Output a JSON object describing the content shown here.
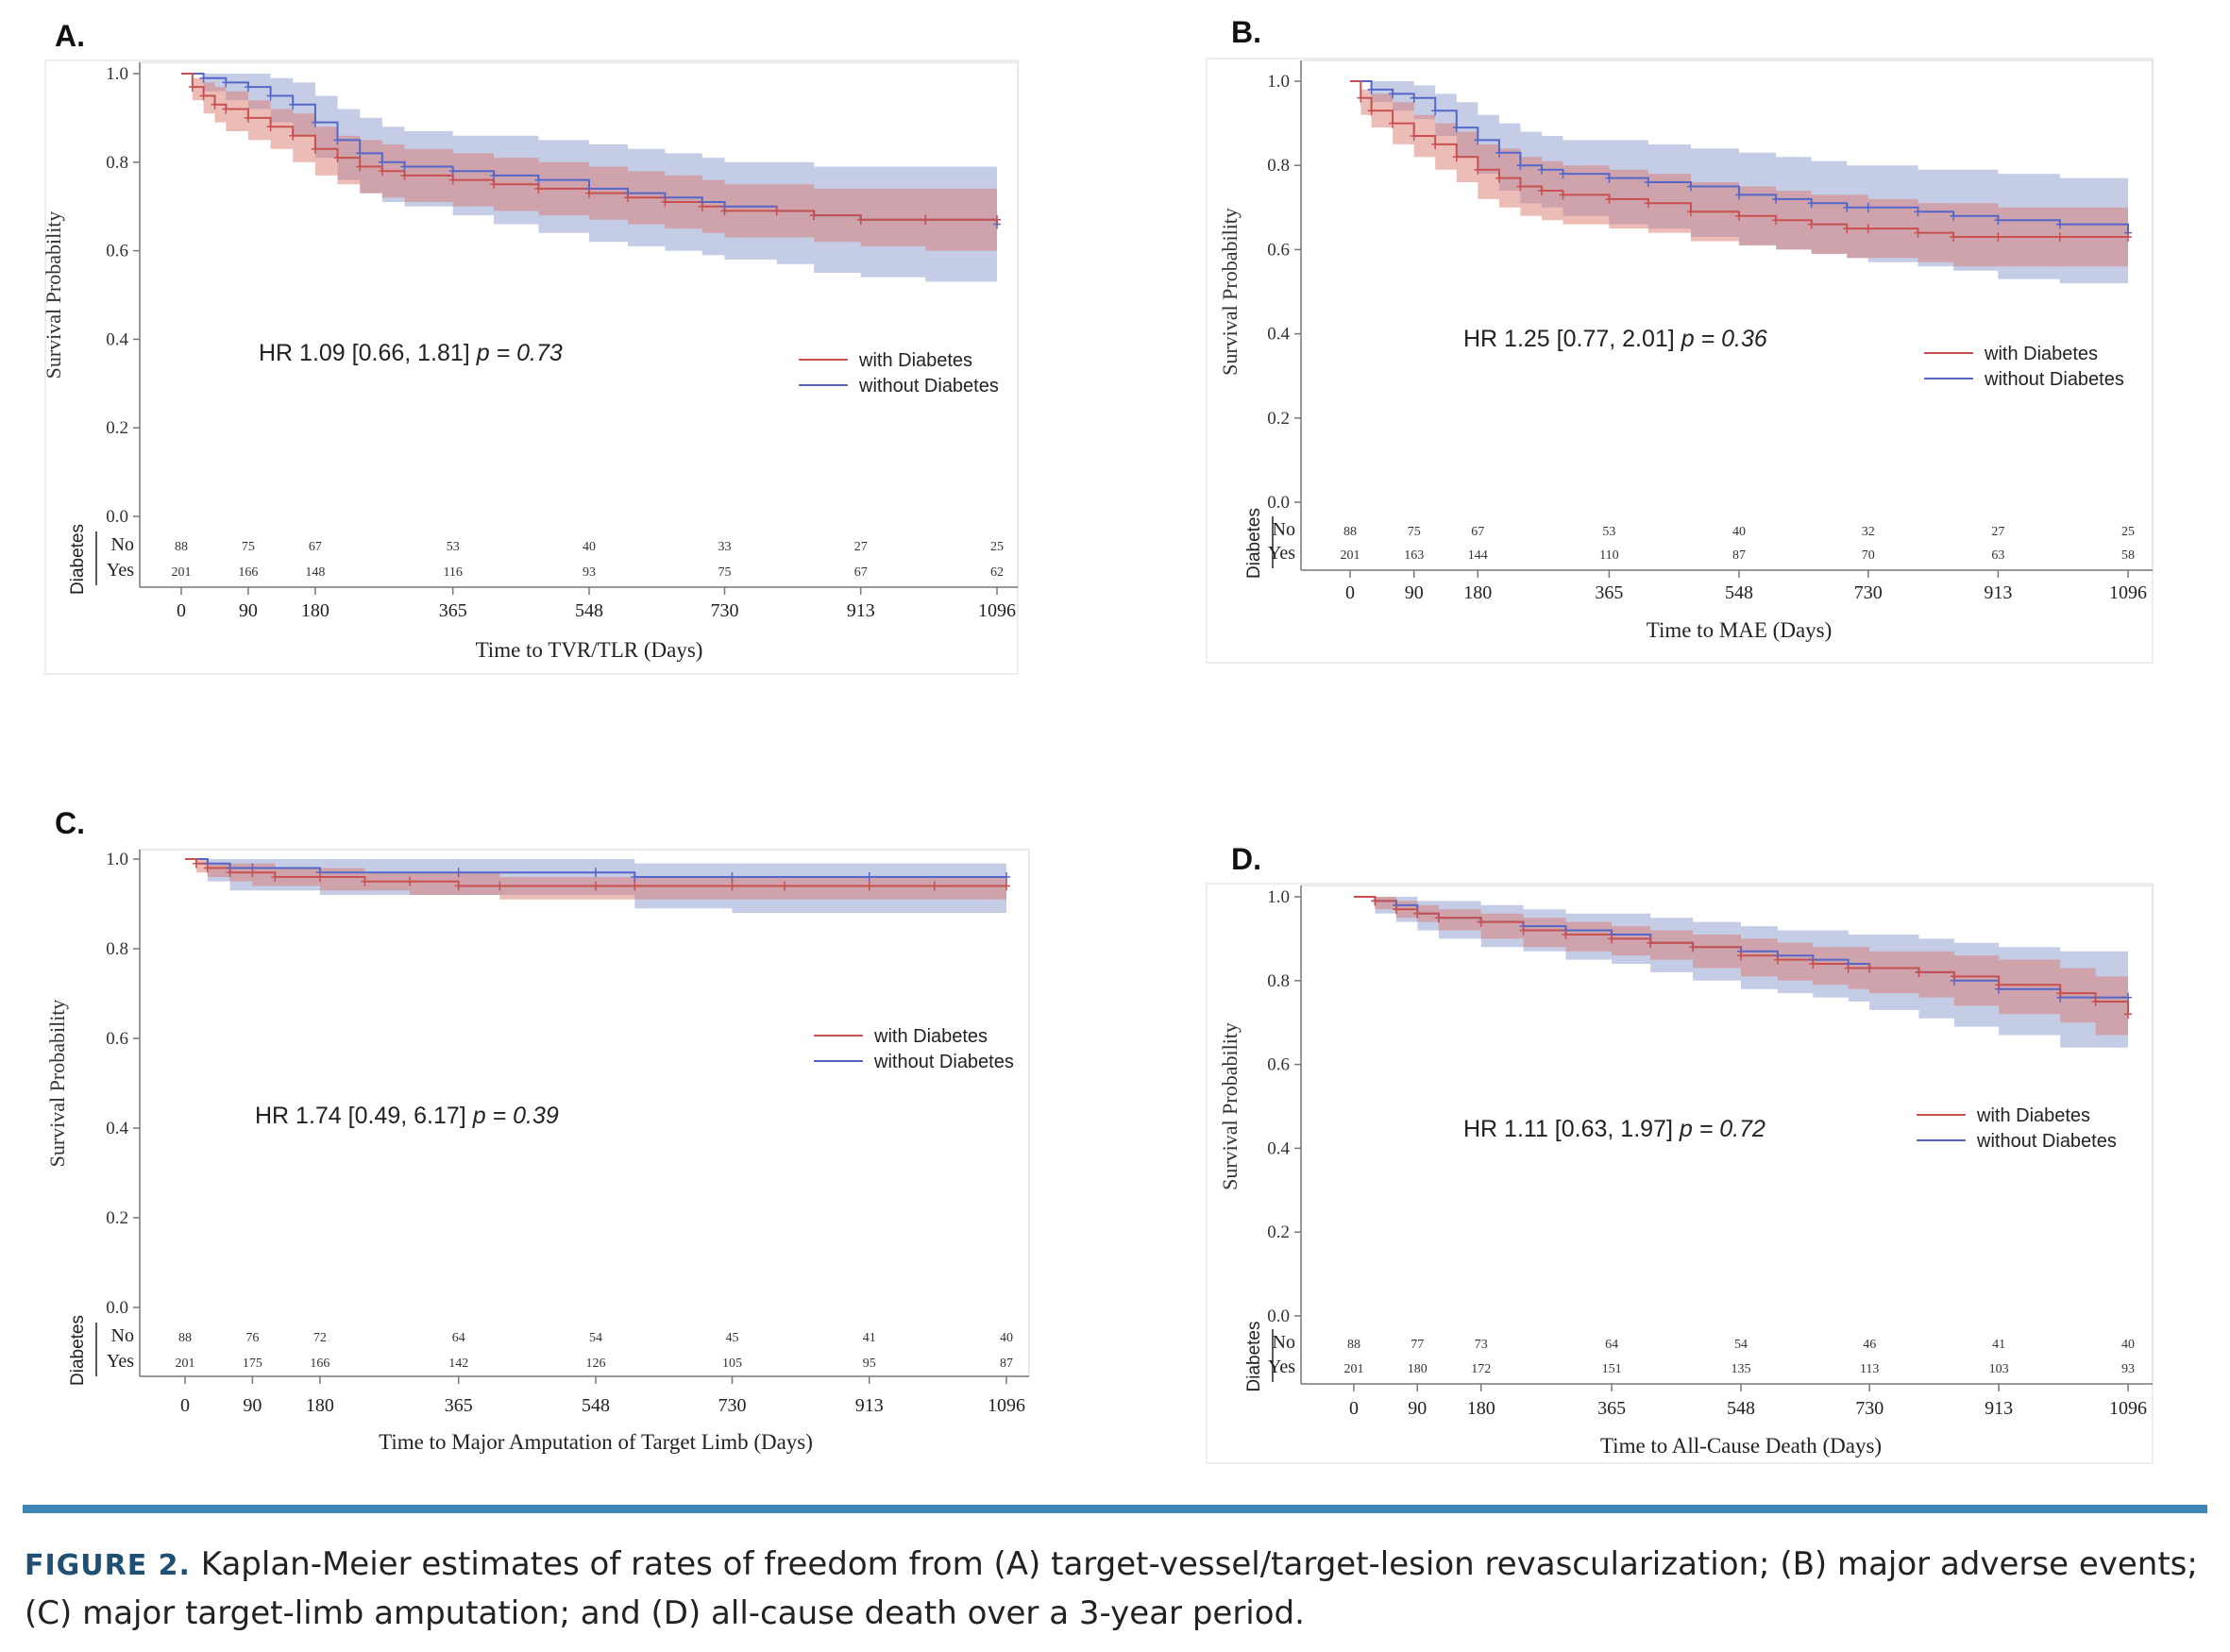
{
  "colors": {
    "diabetes": "#c8504f",
    "no_diabetes": "#5467c8",
    "band_diabetes": "#d9796f",
    "band_no_diabetes": "#aeb8dc"
  },
  "common": {
    "ylabel": "Survival Probability",
    "risk_label": "Diabetes",
    "risk_rows": [
      "No",
      "Yes"
    ],
    "y_ticks": [
      "0.0",
      "0.2",
      "0.4",
      "0.6",
      "0.8",
      "1.0"
    ],
    "x_ticks": [
      "0",
      "90",
      "180",
      "365",
      "548",
      "730",
      "913",
      "1096"
    ],
    "legend": [
      "with Diabetes",
      "without Diabetes"
    ]
  },
  "chart_data": [
    {
      "type": "line",
      "panel": "A.",
      "xlabel": "Time to TVR/TLR (Days)",
      "ylabel": "Survival Probability",
      "ylim": [
        0,
        1
      ],
      "xlim": [
        0,
        1096
      ],
      "annotation_prefix": "HR 1.09 [0.66, 1.81] ",
      "annotation_p": "p = 0.73",
      "legend_position": "right",
      "series": [
        {
          "name": "with Diabetes",
          "x": [
            0,
            15,
            30,
            45,
            60,
            90,
            120,
            150,
            180,
            210,
            240,
            270,
            300,
            365,
            420,
            480,
            548,
            600,
            650,
            700,
            730,
            800,
            850,
            913,
            1000,
            1096
          ],
          "y": [
            1.0,
            0.97,
            0.95,
            0.93,
            0.92,
            0.9,
            0.88,
            0.86,
            0.83,
            0.81,
            0.79,
            0.78,
            0.77,
            0.76,
            0.75,
            0.74,
            0.73,
            0.72,
            0.71,
            0.7,
            0.69,
            0.69,
            0.68,
            0.67,
            0.67,
            0.67
          ],
          "lower": [
            1.0,
            0.94,
            0.91,
            0.89,
            0.87,
            0.85,
            0.83,
            0.8,
            0.77,
            0.75,
            0.73,
            0.72,
            0.71,
            0.7,
            0.69,
            0.68,
            0.67,
            0.66,
            0.65,
            0.64,
            0.63,
            0.63,
            0.62,
            0.61,
            0.6,
            0.6
          ],
          "upper": [
            1.0,
            0.99,
            0.98,
            0.97,
            0.96,
            0.94,
            0.92,
            0.91,
            0.88,
            0.86,
            0.85,
            0.84,
            0.83,
            0.82,
            0.81,
            0.8,
            0.79,
            0.78,
            0.77,
            0.76,
            0.75,
            0.75,
            0.74,
            0.74,
            0.74,
            0.74
          ]
        },
        {
          "name": "without Diabetes",
          "x": [
            0,
            30,
            60,
            90,
            120,
            150,
            180,
            210,
            240,
            270,
            300,
            365,
            420,
            480,
            548,
            600,
            650,
            700,
            730,
            800,
            850,
            913,
            1000,
            1096
          ],
          "y": [
            1.0,
            0.99,
            0.98,
            0.97,
            0.95,
            0.93,
            0.89,
            0.85,
            0.82,
            0.8,
            0.79,
            0.78,
            0.77,
            0.76,
            0.74,
            0.73,
            0.72,
            0.71,
            0.7,
            0.69,
            0.68,
            0.67,
            0.67,
            0.66
          ],
          "lower": [
            1.0,
            0.96,
            0.94,
            0.92,
            0.89,
            0.86,
            0.81,
            0.76,
            0.73,
            0.71,
            0.7,
            0.68,
            0.66,
            0.64,
            0.62,
            0.61,
            0.6,
            0.59,
            0.58,
            0.57,
            0.55,
            0.54,
            0.53,
            0.52
          ],
          "upper": [
            1.0,
            1.0,
            1.0,
            1.0,
            0.99,
            0.98,
            0.95,
            0.92,
            0.9,
            0.88,
            0.87,
            0.86,
            0.86,
            0.85,
            0.84,
            0.83,
            0.82,
            0.81,
            0.8,
            0.8,
            0.79,
            0.79,
            0.79,
            0.79
          ]
        }
      ],
      "risk_table": {
        "No": [
          "88",
          "75",
          "67",
          "53",
          "40",
          "33",
          "27",
          "25"
        ],
        "Yes": [
          "201",
          "166",
          "148",
          "116",
          "93",
          "75",
          "67",
          "62"
        ]
      }
    },
    {
      "type": "line",
      "panel": "B.",
      "xlabel": "Time to MAE (Days)",
      "ylabel": "Survival Probability",
      "ylim": [
        0,
        1
      ],
      "xlim": [
        0,
        1096
      ],
      "annotation_prefix": "HR 1.25 [0.77, 2.01] ",
      "annotation_p": "p = 0.36",
      "legend_position": "right",
      "series": [
        {
          "name": "with Diabetes",
          "x": [
            0,
            15,
            30,
            60,
            90,
            120,
            150,
            180,
            210,
            240,
            270,
            300,
            365,
            420,
            480,
            548,
            600,
            650,
            700,
            730,
            800,
            850,
            913,
            1000,
            1096
          ],
          "y": [
            1.0,
            0.96,
            0.93,
            0.9,
            0.87,
            0.85,
            0.82,
            0.79,
            0.77,
            0.75,
            0.74,
            0.73,
            0.72,
            0.71,
            0.69,
            0.68,
            0.67,
            0.66,
            0.65,
            0.65,
            0.64,
            0.63,
            0.63,
            0.63,
            0.63
          ],
          "lower": [
            1.0,
            0.92,
            0.89,
            0.85,
            0.82,
            0.79,
            0.76,
            0.72,
            0.7,
            0.68,
            0.67,
            0.66,
            0.65,
            0.64,
            0.62,
            0.61,
            0.6,
            0.59,
            0.58,
            0.58,
            0.57,
            0.56,
            0.56,
            0.56,
            0.56
          ],
          "upper": [
            1.0,
            0.98,
            0.97,
            0.95,
            0.92,
            0.9,
            0.88,
            0.85,
            0.84,
            0.82,
            0.81,
            0.8,
            0.79,
            0.78,
            0.76,
            0.75,
            0.74,
            0.73,
            0.73,
            0.72,
            0.71,
            0.71,
            0.7,
            0.7,
            0.7
          ]
        },
        {
          "name": "without Diabetes",
          "x": [
            0,
            30,
            60,
            90,
            120,
            150,
            180,
            210,
            240,
            270,
            300,
            365,
            420,
            480,
            548,
            600,
            650,
            700,
            730,
            800,
            850,
            913,
            1000,
            1096
          ],
          "y": [
            1.0,
            0.98,
            0.97,
            0.96,
            0.93,
            0.89,
            0.86,
            0.83,
            0.8,
            0.79,
            0.78,
            0.77,
            0.76,
            0.75,
            0.73,
            0.72,
            0.71,
            0.7,
            0.7,
            0.69,
            0.68,
            0.67,
            0.66,
            0.64
          ],
          "lower": [
            1.0,
            0.95,
            0.93,
            0.91,
            0.87,
            0.82,
            0.78,
            0.74,
            0.71,
            0.7,
            0.68,
            0.66,
            0.65,
            0.63,
            0.61,
            0.6,
            0.59,
            0.58,
            0.57,
            0.56,
            0.55,
            0.53,
            0.52,
            0.5
          ],
          "upper": [
            1.0,
            1.0,
            1.0,
            0.99,
            0.97,
            0.95,
            0.92,
            0.9,
            0.88,
            0.87,
            0.86,
            0.86,
            0.85,
            0.84,
            0.83,
            0.82,
            0.81,
            0.8,
            0.8,
            0.79,
            0.79,
            0.78,
            0.77,
            0.75
          ]
        }
      ],
      "risk_table": {
        "No": [
          "88",
          "75",
          "67",
          "53",
          "40",
          "32",
          "27",
          "25"
        ],
        "Yes": [
          "201",
          "163",
          "144",
          "110",
          "87",
          "70",
          "63",
          "58"
        ]
      }
    },
    {
      "type": "line",
      "panel": "C.",
      "xlabel": "Time to Major Amputation of Target Limb (Days)",
      "ylabel": "Survival Probability",
      "ylim": [
        0,
        1
      ],
      "xlim": [
        0,
        1096
      ],
      "annotation_prefix": "HR 1.74 [0.49, 6.17] ",
      "annotation_p": "p = 0.39",
      "legend_position": "right",
      "series": [
        {
          "name": "with Diabetes",
          "x": [
            0,
            15,
            30,
            60,
            90,
            120,
            180,
            240,
            300,
            365,
            420,
            548,
            600,
            730,
            800,
            913,
            1000,
            1096
          ],
          "y": [
            1.0,
            0.99,
            0.98,
            0.97,
            0.97,
            0.96,
            0.96,
            0.95,
            0.95,
            0.94,
            0.94,
            0.94,
            0.94,
            0.94,
            0.94,
            0.94,
            0.94,
            0.94
          ],
          "lower": [
            1.0,
            0.97,
            0.96,
            0.95,
            0.94,
            0.94,
            0.93,
            0.93,
            0.92,
            0.92,
            0.91,
            0.91,
            0.91,
            0.91,
            0.91,
            0.91,
            0.91,
            0.91
          ],
          "upper": [
            1.0,
            1.0,
            0.99,
            0.99,
            0.99,
            0.98,
            0.98,
            0.97,
            0.97,
            0.97,
            0.96,
            0.96,
            0.96,
            0.96,
            0.96,
            0.96,
            0.96,
            0.96
          ]
        },
        {
          "name": "without Diabetes",
          "x": [
            0,
            30,
            60,
            90,
            180,
            365,
            548,
            600,
            730,
            913,
            1096
          ],
          "y": [
            1.0,
            0.99,
            0.98,
            0.98,
            0.97,
            0.97,
            0.97,
            0.96,
            0.96,
            0.96,
            0.96
          ],
          "lower": [
            1.0,
            0.95,
            0.93,
            0.93,
            0.92,
            0.92,
            0.92,
            0.89,
            0.88,
            0.88,
            0.88
          ],
          "upper": [
            1.0,
            1.0,
            1.0,
            1.0,
            1.0,
            1.0,
            1.0,
            0.99,
            0.99,
            0.99,
            0.99
          ]
        }
      ],
      "risk_table": {
        "No": [
          "88",
          "76",
          "72",
          "64",
          "54",
          "45",
          "41",
          "40"
        ],
        "Yes": [
          "201",
          "175",
          "166",
          "142",
          "126",
          "105",
          "95",
          "87"
        ]
      }
    },
    {
      "type": "line",
      "panel": "D.",
      "xlabel": "Time to All-Cause Death (Days)",
      "ylabel": "Survival Probability",
      "ylim": [
        0,
        1
      ],
      "xlim": [
        0,
        1096
      ],
      "annotation_prefix": "HR 1.11 [0.63, 1.97] ",
      "annotation_p": "p = 0.72",
      "legend_position": "right",
      "series": [
        {
          "name": "with Diabetes",
          "x": [
            0,
            30,
            60,
            90,
            120,
            180,
            240,
            300,
            365,
            420,
            480,
            548,
            600,
            650,
            700,
            730,
            800,
            850,
            913,
            1000,
            1050,
            1096
          ],
          "y": [
            1.0,
            0.99,
            0.97,
            0.96,
            0.95,
            0.94,
            0.92,
            0.91,
            0.9,
            0.89,
            0.88,
            0.86,
            0.85,
            0.84,
            0.83,
            0.83,
            0.82,
            0.81,
            0.79,
            0.77,
            0.75,
            0.72
          ],
          "lower": [
            1.0,
            0.97,
            0.95,
            0.94,
            0.92,
            0.9,
            0.88,
            0.87,
            0.86,
            0.85,
            0.83,
            0.81,
            0.8,
            0.79,
            0.78,
            0.77,
            0.76,
            0.74,
            0.72,
            0.7,
            0.67,
            0.64
          ],
          "upper": [
            1.0,
            1.0,
            0.99,
            0.98,
            0.97,
            0.96,
            0.95,
            0.94,
            0.93,
            0.92,
            0.91,
            0.9,
            0.89,
            0.88,
            0.88,
            0.87,
            0.87,
            0.86,
            0.85,
            0.83,
            0.81,
            0.79
          ]
        },
        {
          "name": "without Diabetes",
          "x": [
            0,
            30,
            60,
            90,
            120,
            180,
            240,
            300,
            365,
            420,
            480,
            548,
            600,
            650,
            700,
            730,
            800,
            850,
            913,
            1000,
            1096
          ],
          "y": [
            1.0,
            0.99,
            0.98,
            0.96,
            0.95,
            0.94,
            0.93,
            0.92,
            0.91,
            0.89,
            0.88,
            0.87,
            0.86,
            0.85,
            0.84,
            0.83,
            0.82,
            0.8,
            0.78,
            0.76,
            0.76
          ],
          "lower": [
            1.0,
            0.96,
            0.94,
            0.92,
            0.9,
            0.88,
            0.87,
            0.85,
            0.84,
            0.82,
            0.8,
            0.78,
            0.77,
            0.76,
            0.75,
            0.73,
            0.71,
            0.69,
            0.67,
            0.64,
            0.63
          ],
          "upper": [
            1.0,
            1.0,
            1.0,
            0.99,
            0.99,
            0.98,
            0.97,
            0.96,
            0.96,
            0.95,
            0.94,
            0.93,
            0.92,
            0.92,
            0.91,
            0.91,
            0.9,
            0.89,
            0.88,
            0.87,
            0.85
          ]
        }
      ],
      "risk_table": {
        "No": [
          "88",
          "77",
          "73",
          "64",
          "54",
          "46",
          "41",
          "40"
        ],
        "Yes": [
          "201",
          "180",
          "172",
          "151",
          "135",
          "113",
          "103",
          "93"
        ]
      }
    }
  ],
  "caption": {
    "label": "FIGURE 2.",
    "text": " Kaplan-Meier estimates of rates of freedom from (A) target-vessel/target-lesion revascularization; (B) major adverse events; (C) major target-limb amputation; and (D) all-cause death over a 3-year period."
  }
}
